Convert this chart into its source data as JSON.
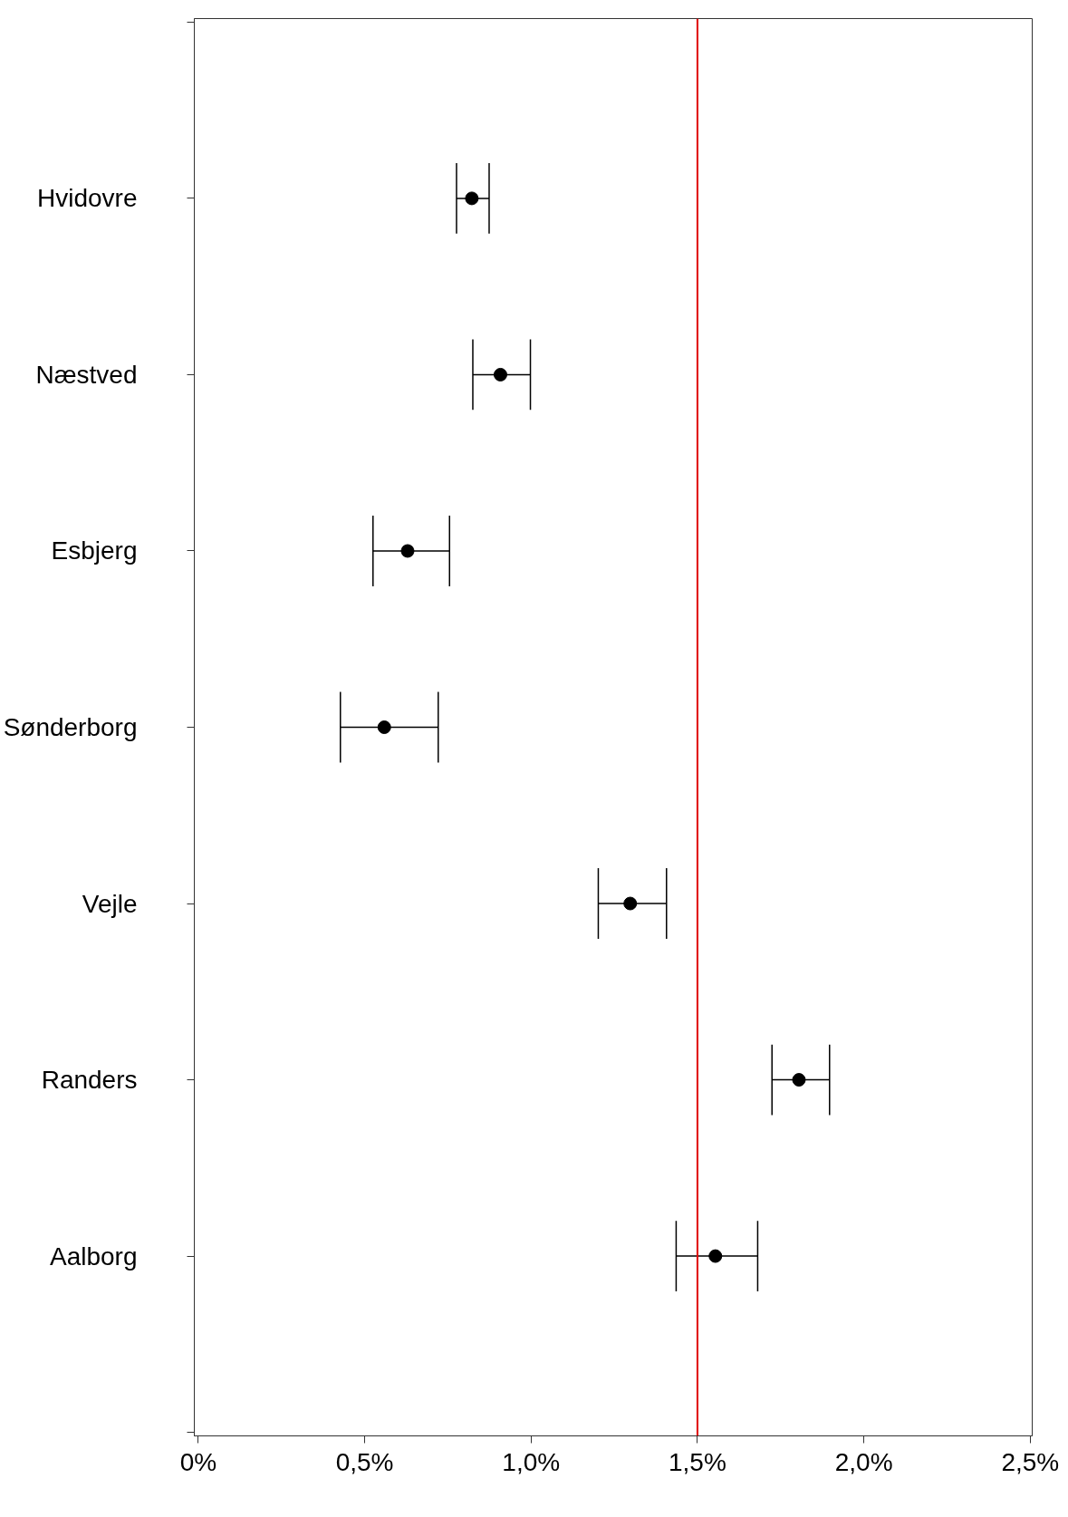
{
  "chart_data": {
    "type": "scatter",
    "orientation": "horizontal",
    "categories": [
      "Hvidovre",
      "Næstved",
      "Esbjerg",
      "Sønderborg",
      "Vejle",
      "Randers",
      "Aalborg"
    ],
    "values": [
      0.822,
      0.908,
      0.629,
      0.559,
      1.298,
      1.805,
      1.554
    ],
    "errors": [
      [
        0.776,
        0.874
      ],
      [
        0.825,
        0.998
      ],
      [
        0.525,
        0.755
      ],
      [
        0.427,
        0.721
      ],
      [
        1.202,
        1.407
      ],
      [
        1.724,
        1.897
      ],
      [
        1.436,
        1.681
      ]
    ],
    "color": "#000000",
    "marker": "circle",
    "grid": false,
    "xlim": [
      -0.012,
      2.506
    ],
    "xticks": [
      {
        "value": 0,
        "label": "0%"
      },
      {
        "value": 0.5,
        "label": "0,5%"
      },
      {
        "value": 1.0,
        "label": "1,0%"
      },
      {
        "value": 1.5,
        "label": "1,5%"
      },
      {
        "value": 2.0,
        "label": "2,0%"
      },
      {
        "value": 2.5,
        "label": "2,5%"
      }
    ],
    "ref_lines": [
      {
        "axis": "x",
        "value": 1.5,
        "label": null,
        "color": "#e00000"
      }
    ]
  }
}
